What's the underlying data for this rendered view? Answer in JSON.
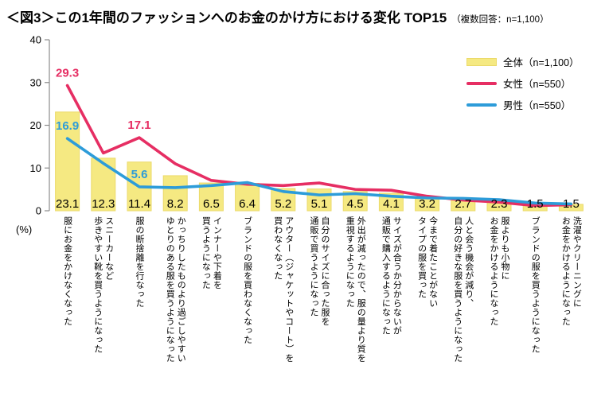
{
  "title": {
    "text": "＜図3＞この1年間のファッションへのお金のかけ方における変化 TOP15",
    "note": "（複数回答：n=1,100）"
  },
  "axis": {
    "unit_label": "(%)",
    "ticks": [
      0,
      10,
      20,
      30,
      40
    ],
    "max": 40
  },
  "colors": {
    "bar_fill": "#F5E982",
    "bar_border": "#EBDA6A",
    "female_line": "#E62E63",
    "male_line": "#2D9CD9",
    "axis": "#8C8C8C",
    "bar_value_text": "#000000"
  },
  "legend": [
    {
      "label": "全体（n=1,100）",
      "type": "bar"
    },
    {
      "label": "女性（n=550）",
      "type": "line-female"
    },
    {
      "label": "男性（n=550）",
      "type": "line-male"
    }
  ],
  "chart_data": {
    "type": "bar",
    "title": "＜図3＞この1年間のファッションへのお金のかけ方における変化 TOP15（複数回答：n=1,100）",
    "ylabel": "(%)",
    "ylim": [
      0,
      40
    ],
    "grid": false,
    "legend_position": "top-right",
    "categories": [
      "服にお金をかけなくなった",
      "スニーカーなど\n歩きやすい靴を買うようになった",
      "服の断捨離を行なった",
      "かっちりしたものより過ごしやすい\nゆとりのある服を買うようになった",
      "インナーや下着を\n買うようになった",
      "ブランドの服を買わなくなった",
      "アウター（ジャケットやコート）を\n買わなくなった",
      "自分のサイズに合った服を\n通販で買うようになった",
      "外出が減ったので、服の量より質を\n重視するようになった",
      "サイズが合うか分からないが\n通販で購入するようになった",
      "今まで着たことがない\nタイプの服を買った",
      "人と会う機会が減り、\n自分の好きな服を買うようになった",
      "服よりも小物に\nお金をかけるようになった",
      "ブランドの服を買うようになった",
      "洗濯やクリーニングに\nお金をかけるようになった"
    ],
    "series": [
      {
        "name": "全体（n=1,100）",
        "type": "bar",
        "values": [
          23.1,
          12.3,
          11.4,
          8.2,
          6.5,
          6.4,
          5.2,
          5.1,
          4.5,
          4.1,
          3.2,
          2.7,
          2.3,
          1.5,
          1.5
        ],
        "all_values_labeled": true
      },
      {
        "name": "女性（n=550）",
        "type": "line",
        "values": [
          29.3,
          13.5,
          17.1,
          11.0,
          7.1,
          6.2,
          5.9,
          6.5,
          5.0,
          4.8,
          3.4,
          2.5,
          2.0,
          1.2,
          1.4
        ],
        "labeled_points": [
          {
            "index": 0,
            "value": 29.3
          },
          {
            "index": 2,
            "value": 17.1
          }
        ]
      },
      {
        "name": "男性（n=550）",
        "type": "line",
        "values": [
          16.9,
          11.1,
          5.6,
          5.4,
          5.9,
          6.6,
          4.5,
          3.7,
          4.0,
          3.4,
          3.0,
          2.9,
          2.6,
          1.8,
          1.6
        ],
        "labeled_points": [
          {
            "index": 0,
            "value": 16.9
          },
          {
            "index": 2,
            "value": 5.6
          }
        ]
      }
    ]
  }
}
